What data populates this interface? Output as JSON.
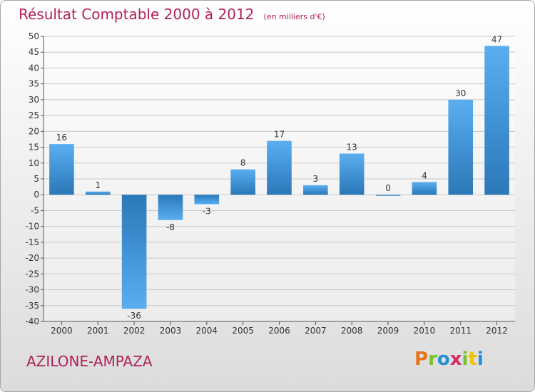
{
  "header": {
    "title": "Résultat Comptable 2000 à 2012",
    "unit": "(en milliers d'€)"
  },
  "footer": {
    "commune": "AZILONE-AMPAZA",
    "logo_letters": [
      "P",
      "r",
      "o",
      "x",
      "i",
      "t",
      "i"
    ],
    "logo_colors": [
      "#e8731a",
      "#7bbf2a",
      "#1f8fd6",
      "#d42b6a",
      "#7bbf2a",
      "#f2c200",
      "#1f8fd6"
    ]
  },
  "colors": {
    "bar_light": "#5aaef0",
    "bar_dark": "#2a78b8",
    "title": "#b0205a"
  },
  "chart_data": {
    "type": "bar",
    "categories": [
      "2000",
      "2001",
      "2002",
      "2003",
      "2004",
      "2005",
      "2006",
      "2007",
      "2008",
      "2009",
      "2010",
      "2011",
      "2012"
    ],
    "values": [
      16,
      1,
      -36,
      -8,
      -3,
      8,
      17,
      3,
      13,
      0,
      4,
      30,
      47
    ],
    "ylim": [
      -40,
      50
    ],
    "yticks": [
      50,
      45,
      40,
      35,
      30,
      25,
      20,
      15,
      10,
      5,
      0,
      -5,
      -10,
      -15,
      -20,
      -25,
      -30,
      -35,
      -40
    ],
    "grid": true
  }
}
